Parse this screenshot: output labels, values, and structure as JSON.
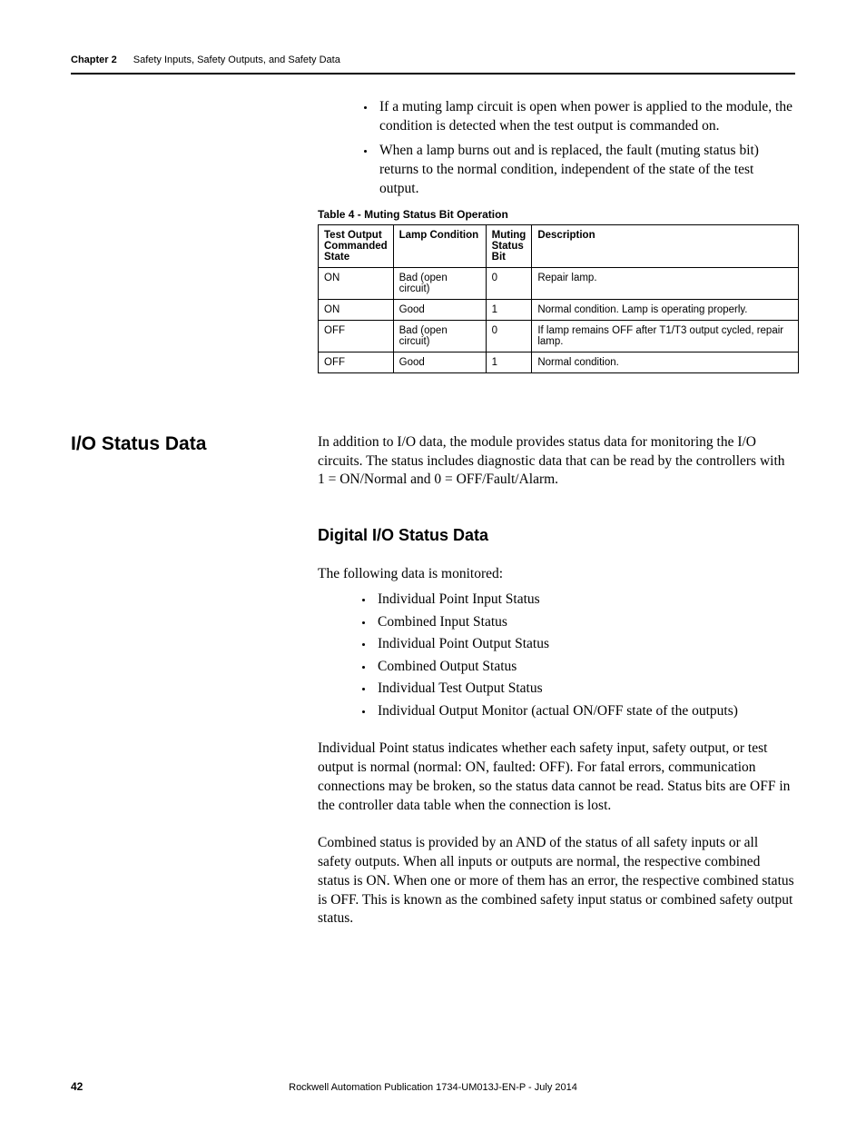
{
  "header": {
    "chapter": "Chapter 2",
    "title": "Safety Inputs, Safety Outputs, and Safety Data"
  },
  "top_bullets": [
    "If a muting lamp circuit is open when power is applied to the module, the condition is detected when the test output is commanded on.",
    "When a lamp burns out and is replaced, the fault (muting status bit) returns to the normal condition, independent of the state of the test output."
  ],
  "table": {
    "caption": "Table 4 - Muting Status Bit Operation",
    "headers": [
      "Test Output Commanded State",
      "Lamp Condition",
      "Muting Status Bit",
      "Description"
    ],
    "rows": [
      [
        "ON",
        "Bad (open circuit)",
        "0",
        "Repair lamp."
      ],
      [
        "ON",
        "Good",
        "1",
        "Normal condition. Lamp is operating properly."
      ],
      [
        "OFF",
        "Bad (open circuit)",
        "0",
        "If lamp remains OFF after T1/T3 output cycled, repair lamp."
      ],
      [
        "OFF",
        "Good",
        "1",
        "Normal condition."
      ]
    ]
  },
  "section": {
    "heading": "I/O Status Data",
    "intro": "In addition to I/O data, the module provides status data for monitoring the I/O circuits. The status includes diagnostic data that can be read by the controllers with 1 = ON/Normal and 0 = OFF/Fault/Alarm."
  },
  "subsection": {
    "heading": "Digital I/O Status Data",
    "lead": "The following data is monitored:",
    "items": [
      "Individual Point Input Status",
      "Combined Input Status",
      "Individual Point Output Status",
      "Combined Output Status",
      "Individual Test Output Status",
      "Individual Output Monitor (actual ON/OFF state of the outputs)"
    ],
    "para1": "Individual Point status indicates whether each safety input, safety output, or test output is normal (normal: ON, faulted: OFF). For fatal errors, communication connections may be broken, so the status data cannot be read. Status bits are OFF in the controller data table when the connection is lost.",
    "para2": "Combined status is provided by an AND of the status of all safety inputs or all safety outputs. When all inputs or outputs are normal, the respective combined status is ON. When one or more of them has an error, the respective combined status is OFF. This is known as the combined safety input status or combined safety output status."
  },
  "footer": {
    "page": "42",
    "pub": "Rockwell Automation Publication 1734-UM013J-EN-P - July 2014"
  }
}
